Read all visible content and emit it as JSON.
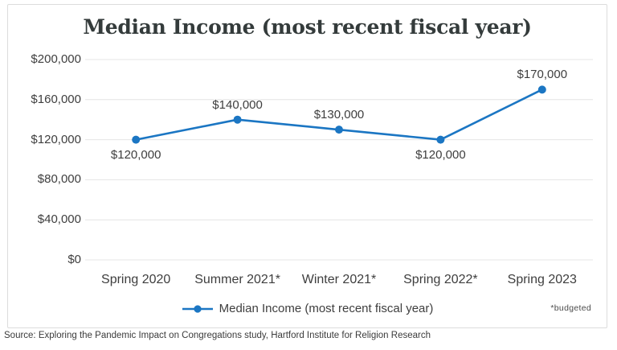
{
  "page": {
    "source_text": "Source: Exploring the Pandemic Impact on Congregations study, Hartford Institute for Religion Research"
  },
  "chart_data": {
    "type": "line",
    "title": "Median Income (most recent fiscal year)",
    "categories": [
      "Spring 2020",
      "Summer 2021*",
      "Winter 2021*",
      "Spring 2022*",
      "Spring 2023"
    ],
    "series": [
      {
        "name": "Median Income (most recent fiscal year)",
        "values": [
          120000,
          140000,
          130000,
          120000,
          170000
        ],
        "color": "#1b76c3"
      }
    ],
    "point_labels": [
      "$120,000",
      "$140,000",
      "$130,000",
      "$120,000",
      "$170,000"
    ],
    "point_label_positions": [
      "below",
      "above",
      "above",
      "below",
      "above"
    ],
    "ylim": [
      0,
      200000
    ],
    "yticks": [
      0,
      40000,
      80000,
      120000,
      160000,
      200000
    ],
    "ytick_labels": [
      "$0",
      "$40,000",
      "$80,000",
      "$120,000",
      "$160,000",
      "$200,000"
    ],
    "grid": true,
    "legend": {
      "label": "Median Income (most recent fiscal year)",
      "position": "bottom-center"
    },
    "footnote": "*budgeted",
    "colors": {
      "line": "#1b76c3",
      "grid": "#e4e4e4",
      "text": "#3e3e3e",
      "title": "#343b3b"
    }
  }
}
